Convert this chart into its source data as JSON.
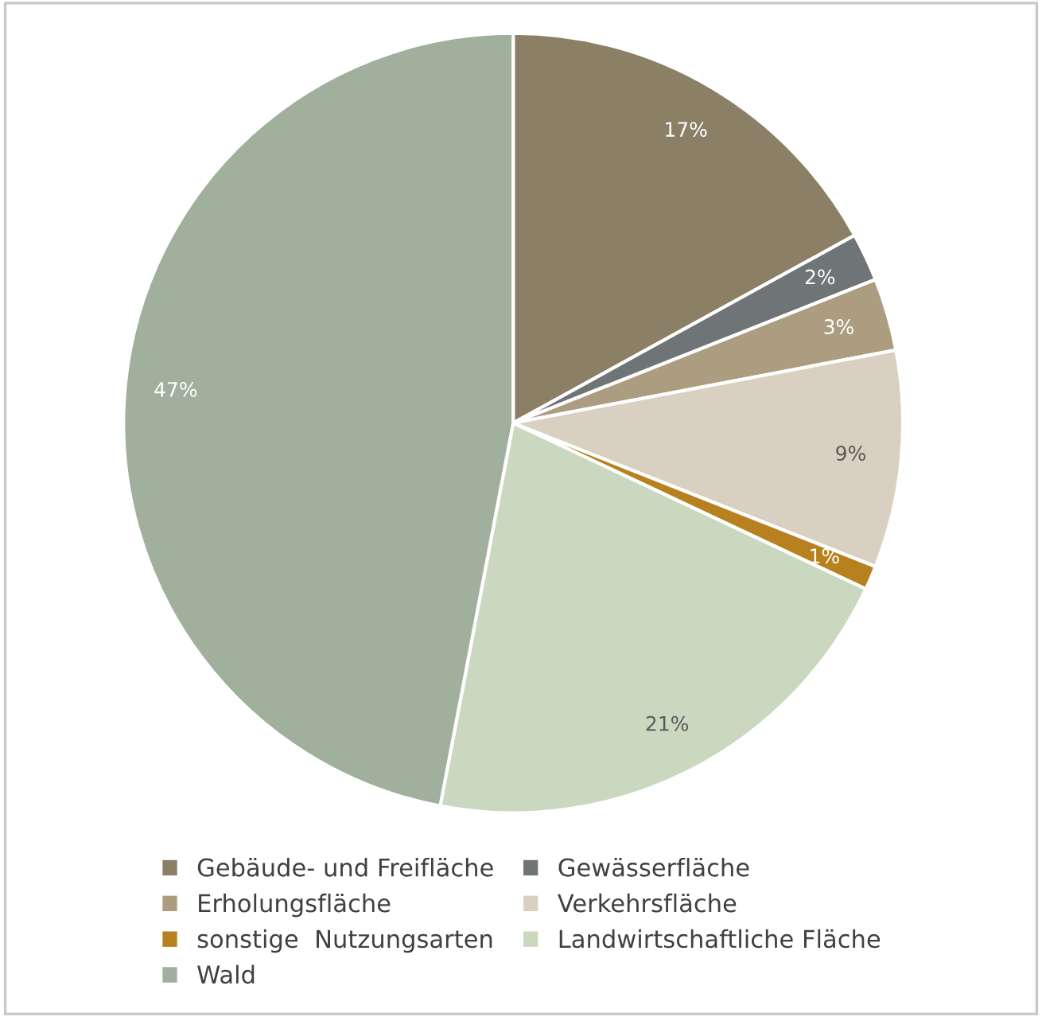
{
  "chart_data": {
    "type": "pie",
    "categories": [
      "Gebäude- und Freifläche",
      "Gewässerfläche",
      "Erholungsfläche",
      "Verkehrsfläche",
      "sonstige  Nutzungsarten",
      "Landwirtschaftliche Fläche",
      "Wald"
    ],
    "values": [
      17,
      2,
      3,
      9,
      1,
      21,
      47
    ],
    "colors": [
      "#8b7f65",
      "#6f7576",
      "#ad9d80",
      "#d9d0c1",
      "#b8811f",
      "#c9d8bf",
      "#a0b09c"
    ],
    "value_labels": [
      "17%",
      "2%",
      "3%",
      "9%",
      "1%",
      "21%",
      "47%"
    ],
    "legend": "bottom"
  }
}
